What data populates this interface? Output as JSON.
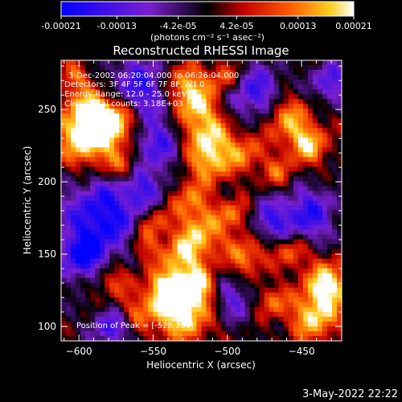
{
  "colorbar": {
    "tick_labels": [
      "-0.00021",
      "-0.00013",
      "-4.2e-05",
      "4.2e-05",
      "0.00013",
      "0.00021"
    ],
    "tick_values": [
      -0.00021,
      -0.00013,
      -4.2e-05,
      4.2e-05,
      0.00013,
      0.00021
    ],
    "unit_label": "(photons cm⁻² s⁻¹ asec⁻²)",
    "range": [
      -0.00021,
      0.00021
    ],
    "colors": {
      "min": "#0000ff",
      "neg_mid": "#7a1fd0",
      "zero": "#000000",
      "pos_low": "#c00000",
      "pos_mid": "#ff5a00",
      "pos_high": "#ffcf20",
      "max": "#ffffff"
    }
  },
  "chart_data": {
    "type": "heatmap",
    "title": "Reconstructed RHESSI Image",
    "xlabel": "Heliocentric X (arcsec)",
    "ylabel": "Heliocentric Y (arcsec)",
    "xlim": [
      -612,
      -423
    ],
    "ylim": [
      90,
      284
    ],
    "x_ticks": [
      -600,
      -550,
      -500,
      -450
    ],
    "x_tick_labels": [
      "−600",
      "−550",
      "−500",
      "−450"
    ],
    "y_ticks": [
      100,
      150,
      200,
      250
    ],
    "y_tick_labels": [
      "100",
      "150",
      "200",
      "250"
    ],
    "grid": false,
    "peak": [
      -528,
      230
    ]
  },
  "annotations": {
    "time_range": "3-Dec-2002 06:20:04.000 to 06:26:04.000",
    "detectors": "Detectors: 3F 4F 5F 6F 7F 8F, Att 0",
    "energy_range": "Energy Range: 12.0 - 25.0 keV",
    "clean_counts": "Clean     Total counts: 3.18E+03",
    "peak_position": "Position of Peak = [-528,230]"
  },
  "footer": {
    "timestamp": "3-May-2022 22:22"
  }
}
